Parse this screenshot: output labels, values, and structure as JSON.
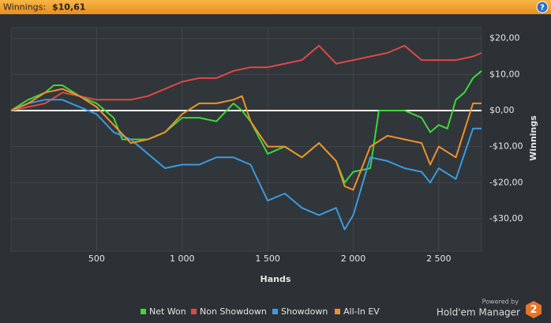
{
  "header": {
    "label": "Winnings:",
    "value": "$10,61",
    "help": "?"
  },
  "chart_data": {
    "type": "line",
    "xlabel": "Hands",
    "ylabel": "Winnings",
    "xlim": [
      0,
      2750
    ],
    "ylim": [
      -39,
      23
    ],
    "xticks": [
      500,
      {
        "value": 1000,
        "label": "1 000"
      },
      {
        "value": 1500,
        "label": "1 500"
      },
      {
        "value": 2000,
        "label": "2 000"
      },
      {
        "value": 2500,
        "label": "2 500"
      }
    ],
    "yticks": [
      {
        "value": 20,
        "label": "$20,00"
      },
      {
        "value": 10,
        "label": "$10,00"
      },
      {
        "value": 0,
        "label": "$0,00"
      },
      {
        "value": -10,
        "label": "-$10,00"
      },
      {
        "value": -20,
        "label": "-$20,00"
      },
      {
        "value": -30,
        "label": "-$30,00"
      }
    ],
    "grid": true,
    "series": [
      {
        "name": "Net Won",
        "color": "#3fd83a",
        "x": [
          0,
          100,
          200,
          250,
          300,
          400,
          500,
          600,
          650,
          700,
          800,
          900,
          1000,
          1100,
          1200,
          1300,
          1350,
          1400,
          1500,
          1600,
          1700,
          1800,
          1900,
          1950,
          2000,
          2100,
          2150,
          2200,
          2300,
          2400,
          2450,
          2500,
          2550,
          2600,
          2650,
          2700,
          2750
        ],
        "values": [
          0,
          3,
          5,
          7,
          7,
          4,
          2,
          -2,
          -8,
          -8,
          -8,
          -6,
          -2,
          -2,
          -3,
          2,
          0,
          -3,
          -12,
          -10,
          -13,
          -9,
          -14,
          -20,
          -17,
          -16,
          0,
          0,
          0,
          -2,
          -6,
          -4,
          -5,
          3,
          5,
          9,
          11
        ]
      },
      {
        "name": "Non Showdown",
        "color": "#e04848",
        "x": [
          0,
          100,
          200,
          300,
          400,
          500,
          600,
          700,
          800,
          900,
          1000,
          1100,
          1200,
          1300,
          1400,
          1500,
          1600,
          1700,
          1800,
          1900,
          2000,
          2100,
          2200,
          2300,
          2400,
          2500,
          2600,
          2700,
          2750
        ],
        "values": [
          0,
          1,
          2,
          5,
          4,
          3,
          3,
          3,
          4,
          6,
          8,
          9,
          9,
          11,
          12,
          12,
          13,
          14,
          18,
          13,
          14,
          15,
          16,
          18,
          14,
          14,
          14,
          15,
          16
        ]
      },
      {
        "name": "Showdown",
        "color": "#3a9be0",
        "x": [
          0,
          100,
          200,
          300,
          400,
          500,
          600,
          700,
          800,
          900,
          1000,
          1100,
          1200,
          1300,
          1400,
          1500,
          1600,
          1700,
          1800,
          1900,
          1950,
          2000,
          2100,
          2200,
          2300,
          2400,
          2450,
          2500,
          2600,
          2700,
          2750
        ],
        "values": [
          0,
          2,
          3,
          3,
          1,
          -1,
          -6,
          -8,
          -12,
          -16,
          -15,
          -15,
          -13,
          -13,
          -15,
          -25,
          -23,
          -27,
          -29,
          -27,
          -33,
          -29,
          -13,
          -14,
          -16,
          -17,
          -20,
          -16,
          -19,
          -5,
          -5
        ]
      },
      {
        "name": "All-In EV",
        "color": "#f0902c",
        "x": [
          0,
          100,
          200,
          300,
          400,
          500,
          600,
          700,
          800,
          900,
          1000,
          1100,
          1200,
          1300,
          1350,
          1400,
          1500,
          1600,
          1700,
          1800,
          1900,
          1950,
          2000,
          2100,
          2200,
          2300,
          2400,
          2450,
          2500,
          2600,
          2700,
          2750
        ],
        "values": [
          0,
          2,
          5,
          6,
          4,
          1,
          -4,
          -9,
          -8,
          -6,
          -1,
          2,
          2,
          3,
          4,
          -3,
          -10,
          -10,
          -13,
          -9,
          -14,
          -21,
          -22,
          -10,
          -7,
          -8,
          -9,
          -15,
          -10,
          -13,
          2,
          2
        ]
      }
    ]
  },
  "footer": {
    "powered": "Powered by",
    "brand": "Hold'em Manager",
    "badge": "2"
  }
}
